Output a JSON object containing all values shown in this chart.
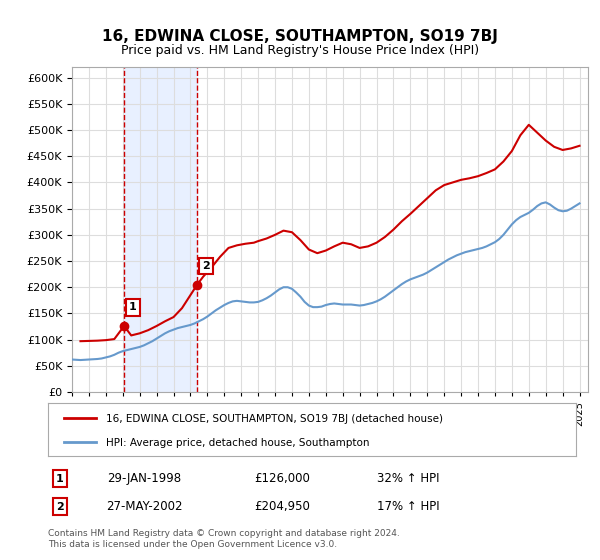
{
  "title": "16, EDWINA CLOSE, SOUTHAMPTON, SO19 7BJ",
  "subtitle": "Price paid vs. HM Land Registry's House Price Index (HPI)",
  "legend_property": "16, EDWINA CLOSE, SOUTHAMPTON, SO19 7BJ (detached house)",
  "legend_hpi": "HPI: Average price, detached house, Southampton",
  "annotation1_label": "1",
  "annotation1_date": "29-JAN-1998",
  "annotation1_price": "£126,000",
  "annotation1_hpi": "32% ↑ HPI",
  "annotation1_year": 1998.08,
  "annotation1_value": 126000,
  "annotation2_label": "2",
  "annotation2_date": "27-MAY-2002",
  "annotation2_price": "£204,950",
  "annotation2_hpi": "17% ↑ HPI",
  "annotation2_year": 2002.4,
  "annotation2_value": 204950,
  "ylim": [
    0,
    620000
  ],
  "xlim_start": 1995.0,
  "xlim_end": 2025.5,
  "property_color": "#cc0000",
  "hpi_color": "#6699cc",
  "annotation_box_color": "#cc0000",
  "footnote": "Contains HM Land Registry data © Crown copyright and database right 2024.\nThis data is licensed under the Open Government Licence v3.0.",
  "hpi_years": [
    1995.0,
    1995.25,
    1995.5,
    1995.75,
    1996.0,
    1996.25,
    1996.5,
    1996.75,
    1997.0,
    1997.25,
    1997.5,
    1997.75,
    1998.0,
    1998.25,
    1998.5,
    1998.75,
    1999.0,
    1999.25,
    1999.5,
    1999.75,
    2000.0,
    2000.25,
    2000.5,
    2000.75,
    2001.0,
    2001.25,
    2001.5,
    2001.75,
    2002.0,
    2002.25,
    2002.5,
    2002.75,
    2003.0,
    2003.25,
    2003.5,
    2003.75,
    2004.0,
    2004.25,
    2004.5,
    2004.75,
    2005.0,
    2005.25,
    2005.5,
    2005.75,
    2006.0,
    2006.25,
    2006.5,
    2006.75,
    2007.0,
    2007.25,
    2007.5,
    2007.75,
    2008.0,
    2008.25,
    2008.5,
    2008.75,
    2009.0,
    2009.25,
    2009.5,
    2009.75,
    2010.0,
    2010.25,
    2010.5,
    2010.75,
    2011.0,
    2011.25,
    2011.5,
    2011.75,
    2012.0,
    2012.25,
    2012.5,
    2012.75,
    2013.0,
    2013.25,
    2013.5,
    2013.75,
    2014.0,
    2014.25,
    2014.5,
    2014.75,
    2015.0,
    2015.25,
    2015.5,
    2015.75,
    2016.0,
    2016.25,
    2016.5,
    2016.75,
    2017.0,
    2017.25,
    2017.5,
    2017.75,
    2018.0,
    2018.25,
    2018.5,
    2018.75,
    2019.0,
    2019.25,
    2019.5,
    2019.75,
    2020.0,
    2020.25,
    2020.5,
    2020.75,
    2021.0,
    2021.25,
    2021.5,
    2021.75,
    2022.0,
    2022.25,
    2022.5,
    2022.75,
    2023.0,
    2023.25,
    2023.5,
    2023.75,
    2024.0,
    2024.25,
    2024.5,
    2024.75,
    2025.0
  ],
  "hpi_values": [
    62000,
    61500,
    61000,
    61500,
    62000,
    62500,
    63000,
    64000,
    66000,
    68000,
    71000,
    75000,
    78000,
    80000,
    82000,
    84000,
    86000,
    89000,
    93000,
    97000,
    102000,
    107000,
    112000,
    116000,
    119000,
    122000,
    124000,
    126000,
    128000,
    131000,
    135000,
    139000,
    144000,
    150000,
    156000,
    161000,
    166000,
    170000,
    173000,
    174000,
    173000,
    172000,
    171000,
    171000,
    172000,
    175000,
    179000,
    184000,
    190000,
    196000,
    200000,
    200000,
    197000,
    190000,
    182000,
    172000,
    165000,
    162000,
    162000,
    163000,
    166000,
    168000,
    169000,
    168000,
    167000,
    167000,
    167000,
    166000,
    165000,
    166000,
    168000,
    170000,
    173000,
    177000,
    182000,
    188000,
    194000,
    200000,
    206000,
    211000,
    215000,
    218000,
    221000,
    224000,
    228000,
    233000,
    238000,
    243000,
    248000,
    253000,
    257000,
    261000,
    264000,
    267000,
    269000,
    271000,
    273000,
    275000,
    278000,
    282000,
    286000,
    292000,
    300000,
    310000,
    320000,
    328000,
    334000,
    338000,
    342000,
    348000,
    355000,
    360000,
    362000,
    358000,
    352000,
    347000,
    345000,
    346000,
    350000,
    355000,
    360000
  ],
  "property_years": [
    1995.5,
    1996.0,
    1996.5,
    1997.0,
    1997.5,
    1998.08,
    1998.5,
    1999.0,
    1999.5,
    2000.0,
    2000.5,
    2001.0,
    2001.5,
    2002.4,
    2002.75,
    2003.25,
    2003.75,
    2004.25,
    2004.75,
    2005.25,
    2005.75,
    2006.0,
    2006.5,
    2007.0,
    2007.5,
    2008.0,
    2008.5,
    2009.0,
    2009.5,
    2010.0,
    2010.5,
    2011.0,
    2011.5,
    2012.0,
    2012.5,
    2013.0,
    2013.5,
    2014.0,
    2014.5,
    2015.0,
    2015.5,
    2016.0,
    2016.5,
    2017.0,
    2017.5,
    2018.0,
    2018.5,
    2019.0,
    2019.5,
    2020.0,
    2020.5,
    2021.0,
    2021.5,
    2022.0,
    2022.5,
    2023.0,
    2023.5,
    2024.0,
    2024.5,
    2025.0
  ],
  "property_values": [
    97000,
    97500,
    98000,
    99000,
    101000,
    126000,
    108000,
    112000,
    118000,
    126000,
    135000,
    143000,
    160000,
    204950,
    220000,
    238000,
    258000,
    275000,
    280000,
    283000,
    285000,
    288000,
    293000,
    300000,
    308000,
    305000,
    290000,
    272000,
    265000,
    270000,
    278000,
    285000,
    282000,
    275000,
    278000,
    285000,
    296000,
    310000,
    326000,
    340000,
    355000,
    370000,
    385000,
    395000,
    400000,
    405000,
    408000,
    412000,
    418000,
    425000,
    440000,
    460000,
    490000,
    510000,
    495000,
    480000,
    468000,
    462000,
    465000,
    470000
  ],
  "bg_color": "#ffffff",
  "grid_color": "#dddddd",
  "shaded_region_start": 1998.08,
  "shaded_region_end": 2002.4,
  "shaded_color": "#e8f0ff"
}
